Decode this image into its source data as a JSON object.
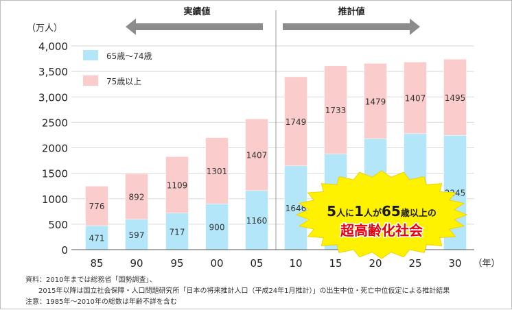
{
  "chart_data": {
    "type": "bar",
    "stacked": true,
    "y_unit": "（万人）",
    "x_unit": "（年）",
    "categories": [
      "85",
      "90",
      "95",
      "00",
      "05",
      "10",
      "15",
      "20",
      "25",
      "30"
    ],
    "series": [
      {
        "name": "65歳～74歳",
        "color": "#b3e6f8",
        "values": [
          471,
          597,
          717,
          900,
          1160,
          1646,
          1879,
          2179,
          2278,
          2245
        ]
      },
      {
        "name": "75歳以上",
        "color": "#fbcccc",
        "values": [
          776,
          892,
          1109,
          1301,
          1407,
          1749,
          1733,
          1479,
          1407,
          1495
        ]
      }
    ],
    "ylim": [
      0,
      4000
    ],
    "yticks": [
      "0",
      "500",
      "1000",
      "1500",
      "2000",
      "2500",
      "3,000",
      "3,500",
      "4,000"
    ],
    "legend": "top-left",
    "grid": true,
    "periods": [
      {
        "label": "実績値",
        "arrow": "left"
      },
      {
        "label": "推計値",
        "arrow": "right"
      }
    ],
    "callout": {
      "line1": [
        "5",
        "人に",
        "1",
        "人が",
        "65",
        "歳以上の"
      ],
      "line2": "超高齢化社会"
    }
  },
  "notes": [
    "資料：2010年までは総務省「国勢調査」、",
    "2015年以降は国立社会保障・人口問題研究所「日本の将来推計人口（平成24年1月推計）」の出生中位・死亡中位仮定による推計結果",
    "注意：1985年～2010年の総数は年齢不詳を含む"
  ]
}
